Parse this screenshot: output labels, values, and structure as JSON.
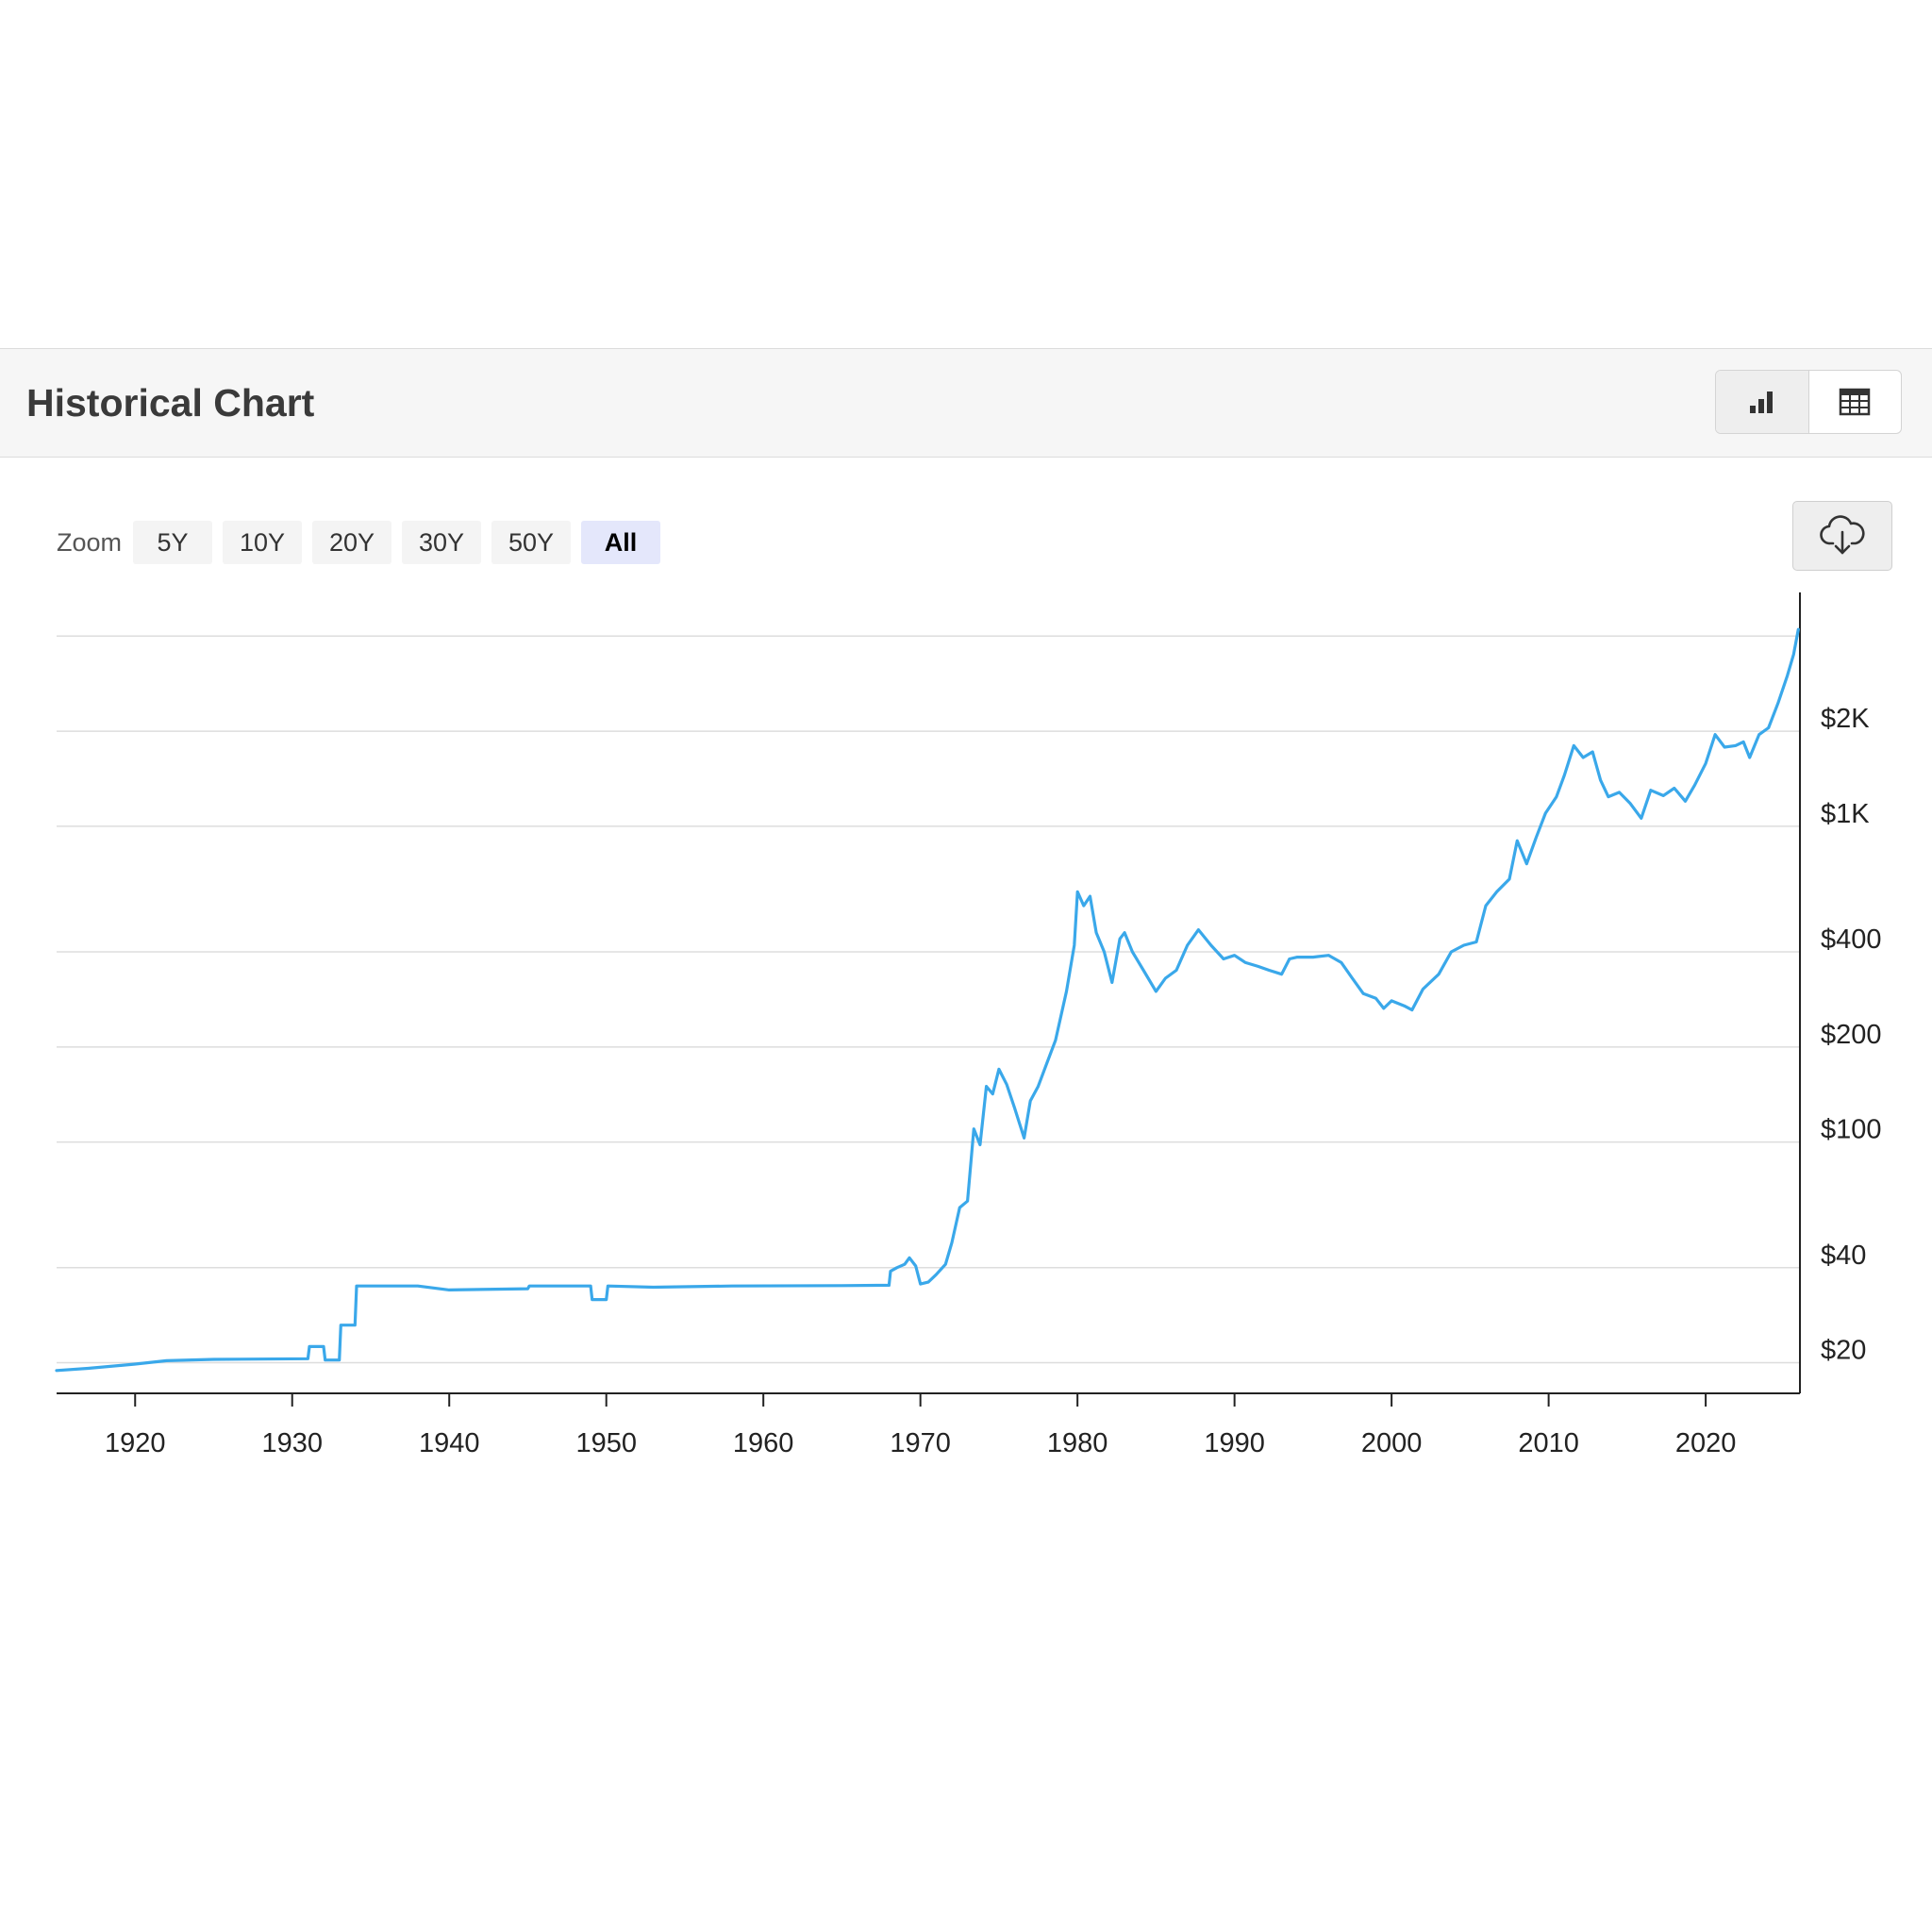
{
  "header": {
    "title": "Historical Chart",
    "chart_view_icon": "bar-chart-icon",
    "table_view_icon": "table-grid-icon"
  },
  "zoom": {
    "label": "Zoom",
    "options": [
      "5Y",
      "10Y",
      "20Y",
      "30Y",
      "50Y",
      "All"
    ],
    "selected": "All"
  },
  "download_icon": "cloud-download-icon",
  "colors": {
    "line": "#3aa8ea",
    "grid": "#dddddd",
    "axis": "#222222",
    "header_bg": "#f6f6f6",
    "zoom_active_bg": "#e4e7fb"
  },
  "chart_data": {
    "type": "line",
    "title": "",
    "xlabel": "",
    "ylabel": "",
    "y_scale": "log",
    "xlim": [
      1915,
      2026
    ],
    "x_ticks": [
      1920,
      1930,
      1940,
      1950,
      1960,
      1970,
      1980,
      1990,
      2000,
      2010,
      2020
    ],
    "x_tick_labels": [
      "1920",
      "1930",
      "1940",
      "1950",
      "1960",
      "1970",
      "1980",
      "1990",
      "2000",
      "2010",
      "2020"
    ],
    "y_ticks": [
      20,
      40,
      100,
      200,
      400,
      1000,
      2000
    ],
    "y_tick_labels": [
      "$20",
      "$40",
      "$100",
      "$200",
      "$400",
      "$1K",
      "$2K"
    ],
    "gridlines_y": [
      20,
      40,
      100,
      200,
      400,
      1000,
      2000,
      4000
    ],
    "legend": "none",
    "series": [
      {
        "values": [
          [
            1915.0,
            18.9
          ],
          [
            1917.0,
            19.2
          ],
          [
            1920.0,
            19.8
          ],
          [
            1922.0,
            20.3
          ],
          [
            1925.0,
            20.5
          ],
          [
            1931.0,
            20.6
          ],
          [
            1931.1,
            22.5
          ],
          [
            1932.0,
            22.5
          ],
          [
            1932.1,
            20.4
          ],
          [
            1933.0,
            20.4
          ],
          [
            1933.1,
            26.3
          ],
          [
            1934.0,
            26.3
          ],
          [
            1934.1,
            35.0
          ],
          [
            1938.0,
            35.0
          ],
          [
            1940.0,
            34.0
          ],
          [
            1945.0,
            34.3
          ],
          [
            1945.1,
            35.0
          ],
          [
            1949.0,
            35.0
          ],
          [
            1949.1,
            31.7
          ],
          [
            1950.0,
            31.7
          ],
          [
            1950.1,
            35.0
          ],
          [
            1953.0,
            34.7
          ],
          [
            1958.0,
            35.0
          ],
          [
            1965.0,
            35.1
          ],
          [
            1968.0,
            35.2
          ],
          [
            1968.1,
            39.0
          ],
          [
            1968.5,
            40.0
          ],
          [
            1969.0,
            41.0
          ],
          [
            1969.3,
            43.0
          ],
          [
            1969.7,
            40.5
          ],
          [
            1970.0,
            35.5
          ],
          [
            1970.5,
            36.0
          ],
          [
            1971.0,
            38.0
          ],
          [
            1971.6,
            41.0
          ],
          [
            1972.0,
            48.0
          ],
          [
            1972.5,
            62.0
          ],
          [
            1973.0,
            65.0
          ],
          [
            1973.4,
            110.0
          ],
          [
            1973.8,
            98.0
          ],
          [
            1974.2,
            150.0
          ],
          [
            1974.6,
            142.0
          ],
          [
            1975.0,
            170.0
          ],
          [
            1975.5,
            152.0
          ],
          [
            1976.0,
            128.0
          ],
          [
            1976.6,
            103.0
          ],
          [
            1977.0,
            135.0
          ],
          [
            1977.5,
            150.0
          ],
          [
            1978.0,
            175.0
          ],
          [
            1978.6,
            210.0
          ],
          [
            1979.3,
            300.0
          ],
          [
            1979.8,
            420.0
          ],
          [
            1980.0,
            620.0
          ],
          [
            1980.4,
            560.0
          ],
          [
            1980.8,
            600.0
          ],
          [
            1981.2,
            460.0
          ],
          [
            1981.7,
            400.0
          ],
          [
            1982.2,
            320.0
          ],
          [
            1982.7,
            440.0
          ],
          [
            1983.0,
            460.0
          ],
          [
            1983.5,
            400.0
          ],
          [
            1984.2,
            350.0
          ],
          [
            1985.0,
            300.0
          ],
          [
            1985.6,
            330.0
          ],
          [
            1986.3,
            350.0
          ],
          [
            1987.0,
            420.0
          ],
          [
            1987.7,
            470.0
          ],
          [
            1988.5,
            420.0
          ],
          [
            1989.3,
            380.0
          ],
          [
            1990.0,
            390.0
          ],
          [
            1990.7,
            370.0
          ],
          [
            1991.5,
            360.0
          ],
          [
            1992.2,
            350.0
          ],
          [
            1993.0,
            340.0
          ],
          [
            1993.5,
            380.0
          ],
          [
            1994.0,
            385.0
          ],
          [
            1995.0,
            385.0
          ],
          [
            1996.0,
            390.0
          ],
          [
            1996.8,
            370.0
          ],
          [
            1997.5,
            330.0
          ],
          [
            1998.2,
            295.0
          ],
          [
            1999.0,
            285.0
          ],
          [
            1999.5,
            265.0
          ],
          [
            2000.0,
            280.0
          ],
          [
            2000.8,
            270.0
          ],
          [
            2001.3,
            262.0
          ],
          [
            2002.0,
            305.0
          ],
          [
            2003.0,
            340.0
          ],
          [
            2003.8,
            400.0
          ],
          [
            2004.6,
            420.0
          ],
          [
            2005.4,
            430.0
          ],
          [
            2006.0,
            560.0
          ],
          [
            2006.7,
            620.0
          ],
          [
            2007.5,
            680.0
          ],
          [
            2008.0,
            900.0
          ],
          [
            2008.6,
            760.0
          ],
          [
            2009.2,
            920.0
          ],
          [
            2009.8,
            1100.0
          ],
          [
            2010.5,
            1240.0
          ],
          [
            2011.0,
            1450.0
          ],
          [
            2011.6,
            1800.0
          ],
          [
            2012.2,
            1650.0
          ],
          [
            2012.8,
            1720.0
          ],
          [
            2013.3,
            1400.0
          ],
          [
            2013.8,
            1240.0
          ],
          [
            2014.5,
            1280.0
          ],
          [
            2015.2,
            1180.0
          ],
          [
            2015.9,
            1060.0
          ],
          [
            2016.5,
            1300.0
          ],
          [
            2017.3,
            1250.0
          ],
          [
            2018.0,
            1320.0
          ],
          [
            2018.7,
            1200.0
          ],
          [
            2019.3,
            1350.0
          ],
          [
            2020.0,
            1580.0
          ],
          [
            2020.6,
            1950.0
          ],
          [
            2021.2,
            1780.0
          ],
          [
            2021.9,
            1800.0
          ],
          [
            2022.4,
            1850.0
          ],
          [
            2022.8,
            1650.0
          ],
          [
            2023.4,
            1950.0
          ],
          [
            2024.0,
            2050.0
          ],
          [
            2024.6,
            2450.0
          ],
          [
            2025.2,
            3000.0
          ],
          [
            2025.6,
            3500.0
          ],
          [
            2025.9,
            4200.0
          ]
        ]
      }
    ]
  }
}
